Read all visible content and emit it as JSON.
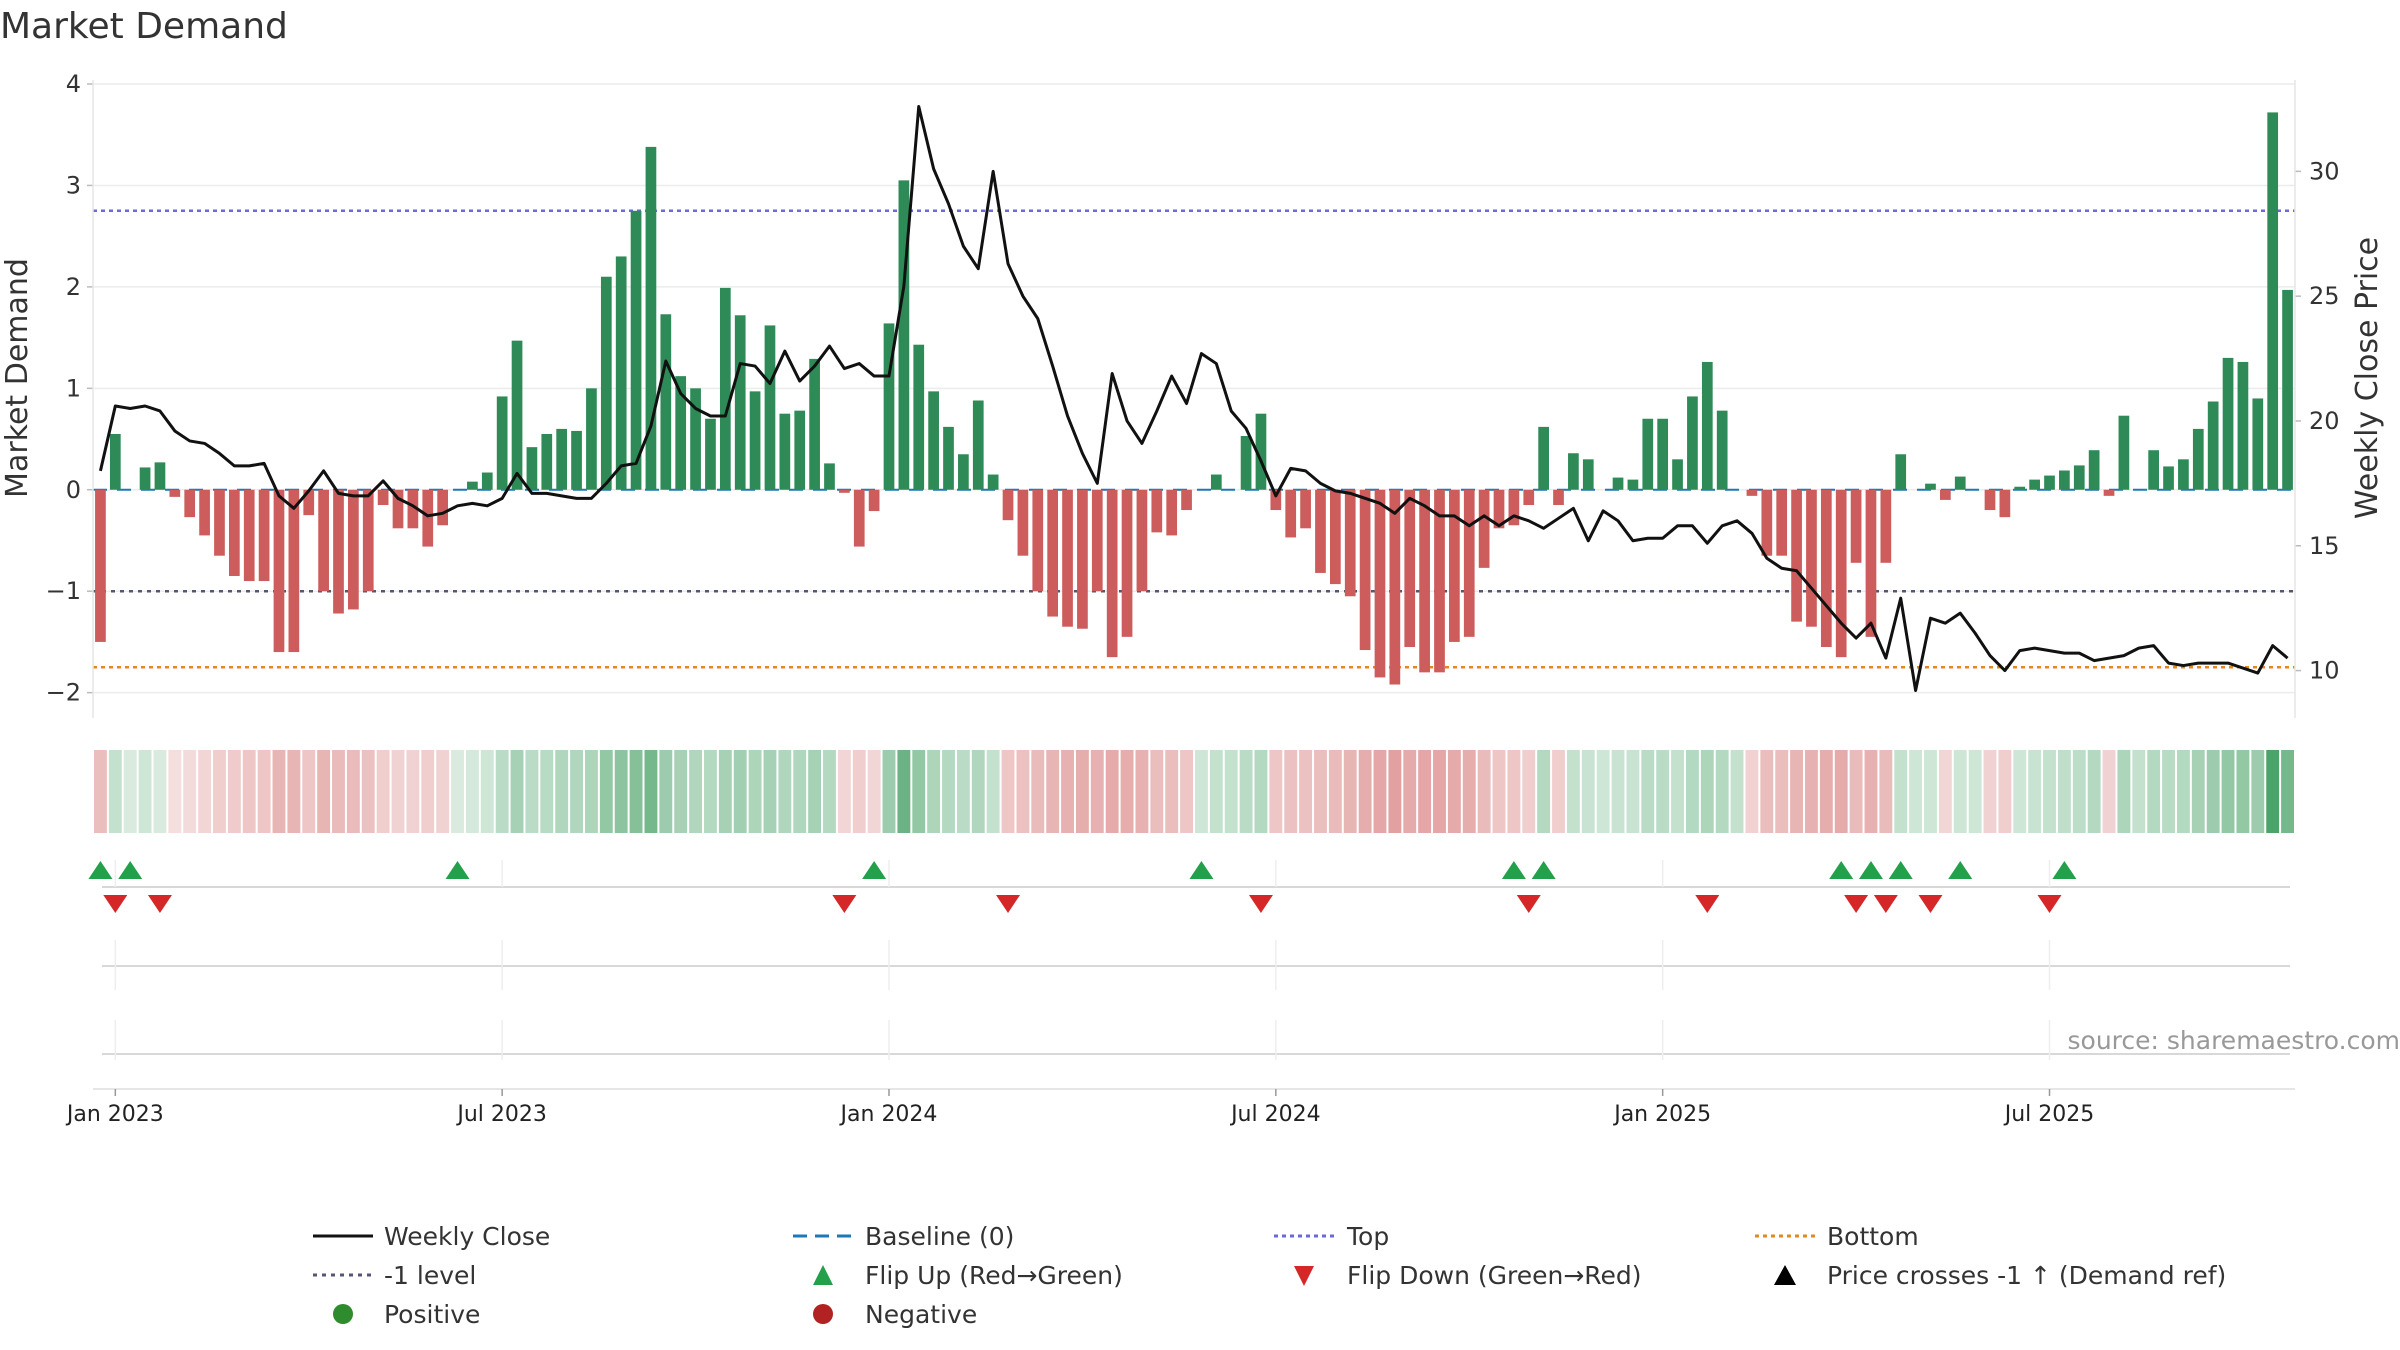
{
  "chart_data": {
    "type": "bar",
    "title": "Market Demand",
    "ylabel_left": "Market Demand",
    "ylabel_right": "Weekly Close Price",
    "ylim_left": [
      -2.25,
      4
    ],
    "ylim_right": [
      8.1,
      33.5
    ],
    "left_ticks": [
      4,
      3,
      2,
      1,
      0,
      -1,
      -2
    ],
    "left_tick_labels": [
      "4",
      "3",
      "2",
      "1",
      "0",
      "−1",
      "−2"
    ],
    "right_ticks": [
      30,
      25,
      20,
      15,
      10
    ],
    "right_tick_labels": [
      "30",
      "25",
      "20",
      "15",
      "10"
    ],
    "x_tick_labels": [
      "Jan 2023",
      "Jul 2023",
      "Jan 2024",
      "Jul 2024",
      "Jan 2025",
      "Jul 2025"
    ],
    "x_tick_weeks": [
      1,
      27,
      53,
      79,
      105,
      131
    ],
    "reference_lines": {
      "top": 2.75,
      "minus_one": -1.0,
      "bottom": -1.75,
      "baseline": 0
    },
    "colors": {
      "positive": "#2e8b57",
      "negative": "#cd5c5c",
      "top_line": "#6a6ad8",
      "bottom_line": "#e08a1e",
      "minus_one_line": "#555577",
      "baseline": "#1f77b4",
      "price": "#111111",
      "flip_up": "#22a14a",
      "flip_down": "#d62728",
      "heat_pos": "#3a9a5b",
      "heat_neg": "#cd5c5c"
    },
    "demand": [
      -1.5,
      0.55,
      0.0,
      0.22,
      0.27,
      -0.07,
      -0.27,
      -0.45,
      -0.65,
      -0.85,
      -0.9,
      -0.9,
      -1.6,
      -1.6,
      -0.25,
      -1.0,
      -1.22,
      -1.18,
      -1.0,
      -0.15,
      -0.38,
      -0.38,
      -0.56,
      -0.35,
      0.0,
      0.08,
      0.17,
      0.92,
      1.47,
      0.42,
      0.55,
      0.6,
      0.58,
      1.0,
      2.1,
      2.3,
      2.75,
      3.38,
      1.73,
      1.12,
      1.0,
      0.7,
      1.99,
      1.72,
      0.97,
      1.62,
      0.75,
      0.78,
      1.29,
      0.26,
      -0.03,
      -0.56,
      -0.21,
      1.64,
      3.05,
      1.43,
      0.97,
      0.62,
      0.35,
      0.88,
      0.15,
      -0.3,
      -0.65,
      -1.0,
      -1.25,
      -1.35,
      -1.37,
      -1.0,
      -1.65,
      -1.45,
      -1.0,
      -0.42,
      -0.45,
      -0.2,
      0.0,
      0.15,
      0.0,
      0.53,
      0.75,
      -0.2,
      -0.47,
      -0.38,
      -0.82,
      -0.93,
      -1.05,
      -1.58,
      -1.85,
      -1.92,
      -1.55,
      -1.8,
      -1.8,
      -1.5,
      -1.45,
      -0.77,
      -0.38,
      -0.35,
      -0.15,
      0.62,
      -0.15,
      0.36,
      0.3,
      0.0,
      0.12,
      0.1,
      0.7,
      0.7,
      0.3,
      0.92,
      1.26,
      0.78,
      0.0,
      -0.06,
      -0.65,
      -0.65,
      -1.3,
      -1.35,
      -1.55,
      -1.65,
      -0.72,
      -1.45,
      -0.72,
      0.35,
      0.0,
      0.06,
      -0.1,
      0.13,
      0.0,
      -0.2,
      -0.27,
      0.03,
      0.1,
      0.14,
      0.19,
      0.24,
      0.39,
      -0.06,
      0.73,
      0.0,
      0.39,
      0.23,
      0.3,
      0.6,
      0.87,
      1.3,
      1.26,
      0.9,
      3.72,
      1.97
    ],
    "price": [
      18.0,
      20.6,
      20.5,
      20.6,
      20.4,
      19.6,
      19.2,
      19.1,
      18.7,
      18.2,
      18.2,
      18.3,
      17.0,
      16.5,
      17.2,
      18.0,
      17.1,
      17.0,
      17.0,
      17.6,
      16.9,
      16.6,
      16.2,
      16.3,
      16.6,
      16.7,
      16.6,
      16.9,
      17.9,
      17.1,
      17.1,
      17.0,
      16.9,
      16.9,
      17.5,
      18.2,
      18.3,
      19.8,
      22.4,
      21.1,
      20.5,
      20.2,
      20.2,
      22.3,
      22.2,
      21.5,
      22.8,
      21.6,
      22.2,
      23.0,
      22.1,
      22.3,
      21.8,
      21.8,
      25.4,
      32.6,
      30.1,
      28.7,
      27.0,
      26.1,
      30.0,
      26.3,
      25.0,
      24.1,
      22.2,
      20.2,
      18.7,
      17.5,
      21.9,
      20.0,
      19.1,
      20.4,
      21.8,
      20.7,
      22.7,
      22.3,
      20.4,
      19.7,
      18.4,
      17.0,
      18.1,
      18.0,
      17.5,
      17.2,
      17.1,
      16.9,
      16.7,
      16.3,
      16.9,
      16.6,
      16.2,
      16.2,
      15.8,
      16.2,
      15.8,
      16.2,
      16.0,
      15.7,
      16.1,
      16.5,
      15.2,
      16.4,
      16.0,
      15.2,
      15.3,
      15.3,
      15.8,
      15.8,
      15.1,
      15.8,
      16.0,
      15.5,
      14.5,
      14.1,
      14.0,
      13.3,
      12.6,
      11.9,
      11.3,
      11.9,
      10.5,
      12.9,
      9.2,
      12.1,
      11.9,
      12.3,
      11.5,
      10.6,
      10.0,
      10.8,
      10.9,
      10.8,
      10.7,
      10.7,
      10.4,
      10.5,
      10.6,
      10.9,
      11.0,
      10.3,
      10.2,
      10.3,
      10.3,
      10.3,
      10.1,
      9.9,
      11.0,
      10.5
    ],
    "heat_shades": [
      0.4,
      0.3,
      0.2,
      0.25,
      0.2,
      0.2,
      0.22,
      0.25,
      0.3,
      0.32,
      0.35,
      0.35,
      0.45,
      0.45,
      0.35,
      0.45,
      0.42,
      0.42,
      0.38,
      0.3,
      0.28,
      0.28,
      0.3,
      0.28,
      0.2,
      0.22,
      0.25,
      0.35,
      0.45,
      0.35,
      0.36,
      0.4,
      0.4,
      0.42,
      0.55,
      0.58,
      0.62,
      0.7,
      0.5,
      0.45,
      0.4,
      0.38,
      0.45,
      0.48,
      0.42,
      0.45,
      0.4,
      0.4,
      0.45,
      0.38,
      0.25,
      0.3,
      0.25,
      0.5,
      0.75,
      0.55,
      0.42,
      0.38,
      0.35,
      0.4,
      0.3,
      0.35,
      0.38,
      0.42,
      0.45,
      0.48,
      0.5,
      0.48,
      0.52,
      0.5,
      0.48,
      0.4,
      0.4,
      0.35,
      0.25,
      0.3,
      0.3,
      0.35,
      0.38,
      0.35,
      0.38,
      0.38,
      0.4,
      0.42,
      0.45,
      0.5,
      0.55,
      0.58,
      0.52,
      0.55,
      0.55,
      0.52,
      0.5,
      0.42,
      0.35,
      0.35,
      0.3,
      0.38,
      0.3,
      0.3,
      0.28,
      0.25,
      0.28,
      0.28,
      0.35,
      0.35,
      0.3,
      0.38,
      0.42,
      0.38,
      0.3,
      0.28,
      0.4,
      0.4,
      0.45,
      0.48,
      0.5,
      0.52,
      0.42,
      0.48,
      0.42,
      0.3,
      0.25,
      0.25,
      0.25,
      0.25,
      0.25,
      0.28,
      0.3,
      0.25,
      0.28,
      0.3,
      0.32,
      0.34,
      0.38,
      0.28,
      0.42,
      0.3,
      0.38,
      0.36,
      0.38,
      0.45,
      0.5,
      0.55,
      0.55,
      0.5,
      0.9,
      0.7
    ],
    "flip_up_weeks": [
      0,
      2,
      24,
      52,
      74,
      95,
      97,
      117,
      119,
      121,
      125,
      132
    ],
    "flip_down_weeks": [
      1,
      4,
      50,
      61,
      78,
      96,
      108,
      118,
      120,
      123,
      131
    ],
    "legend": [
      "Weekly Close",
      "Baseline (0)",
      "Top",
      "Bottom",
      "-1 level",
      "Flip Up (Red→Green)",
      "Flip Down (Green→Red)",
      "Price crosses -1 ↑ (Demand ref)",
      "Positive",
      "Negative"
    ]
  },
  "source_text": "source: sharemaestro.com"
}
